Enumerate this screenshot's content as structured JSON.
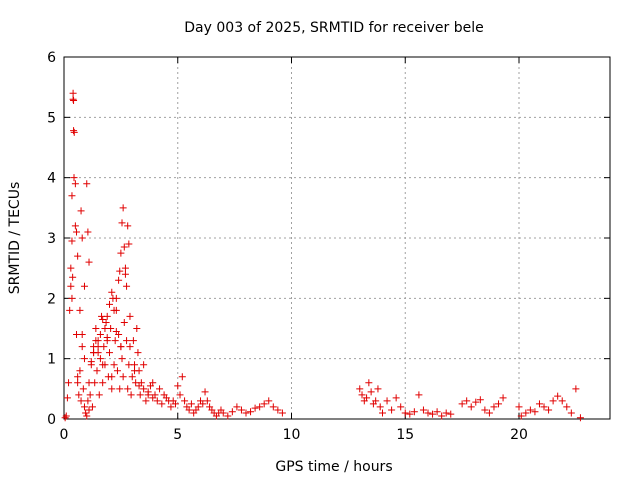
{
  "chart_data": {
    "type": "scatter",
    "title": "Day 003 of 2025, SRMTID for receiver bele",
    "xlabel": "GPS time / hours",
    "ylabel": "SRMTID / TECUs",
    "xlim": [
      0,
      24
    ],
    "ylim": [
      0,
      6
    ],
    "xticks": [
      0,
      5,
      10,
      15,
      20
    ],
    "yticks": [
      0,
      1,
      2,
      3,
      4,
      5,
      6
    ],
    "xtick_labels": [
      "0",
      "5",
      "10",
      "15",
      "20"
    ],
    "ytick_labels": [
      "0",
      "1",
      "2",
      "3",
      "4",
      "5",
      "6"
    ],
    "grid": true,
    "marker": "+",
    "color": "#e00000",
    "series": [
      {
        "name": "SRMTID",
        "x": [
          0.05,
          0.1,
          0.15,
          0.2,
          0.25,
          0.3,
          0.35,
          0.4,
          0.42,
          0.45,
          0.5,
          0.55,
          0.6,
          0.65,
          0.7,
          0.75,
          0.8,
          0.85,
          0.9,
          0.95,
          1.0,
          1.05,
          1.1,
          1.15,
          1.2,
          1.25,
          1.3,
          1.35,
          1.4,
          1.45,
          1.5,
          1.55,
          1.6,
          1.65,
          1.7,
          1.75,
          1.8,
          1.85,
          1.9,
          1.95,
          2.0,
          2.05,
          2.1,
          2.15,
          2.2,
          2.25,
          2.3,
          2.35,
          2.4,
          2.45,
          2.5,
          2.55,
          2.6,
          2.65,
          2.7,
          2.75,
          2.8,
          2.85,
          2.9,
          2.95,
          3.0,
          3.05,
          3.1,
          3.15,
          3.2,
          3.25,
          3.3,
          3.35,
          3.4,
          3.5,
          3.6,
          3.7,
          3.8,
          3.9,
          4.0,
          4.1,
          4.2,
          4.3,
          4.4,
          4.5,
          4.6,
          4.7,
          4.8,
          4.9,
          5.0,
          5.1,
          5.2,
          5.3,
          5.4,
          5.5,
          5.6,
          5.7,
          5.8,
          5.9,
          6.0,
          6.1,
          6.2,
          6.3,
          6.4,
          6.5,
          6.6,
          6.7,
          6.8,
          6.9,
          7.0,
          7.2,
          7.4,
          7.6,
          7.8,
          8.0,
          8.2,
          8.4,
          8.6,
          8.8,
          9.0,
          9.2,
          9.4,
          9.6,
          13.0,
          13.1,
          13.2,
          13.3,
          13.4,
          13.5,
          13.6,
          13.7,
          13.8,
          13.9,
          14.0,
          14.2,
          14.4,
          14.6,
          14.8,
          15.0,
          15.2,
          15.4,
          15.6,
          15.8,
          16.0,
          16.2,
          16.4,
          16.6,
          16.8,
          17.0,
          17.5,
          17.7,
          17.9,
          18.1,
          18.3,
          18.5,
          18.7,
          18.9,
          19.1,
          19.3,
          20.0,
          20.1,
          20.3,
          20.5,
          20.7,
          20.9,
          21.1,
          21.3,
          21.5,
          21.7,
          21.9,
          22.1,
          22.3,
          22.5,
          22.7,
          0.4,
          0.42,
          0.44,
          0.35,
          0.38,
          0.5,
          0.55,
          0.6,
          0.75,
          0.8,
          0.9,
          1.0,
          1.05,
          1.1,
          2.65,
          2.7,
          2.75,
          2.8,
          2.85,
          2.6,
          2.55,
          2.5,
          2.45,
          2.4,
          2.3,
          2.2,
          2.1,
          2.0,
          1.9,
          1.8,
          1.7,
          1.6,
          1.5,
          1.4,
          1.3,
          1.2,
          0.3,
          0.35,
          0.6,
          0.7,
          0.8,
          0.9,
          1.1,
          1.3,
          1.5,
          1.7,
          1.9,
          2.1,
          2.3,
          2.5,
          2.9,
          3.1,
          3.3,
          3.5,
          3.7,
          3.9
        ],
        "y": [
          0.02,
          0.05,
          0.35,
          0.6,
          1.8,
          2.2,
          2.95,
          5.4,
          5.28,
          4.75,
          3.2,
          1.4,
          0.6,
          0.4,
          0.8,
          0.3,
          1.2,
          0.5,
          0.2,
          0.1,
          0.05,
          0.3,
          0.15,
          0.4,
          0.9,
          0.2,
          1.1,
          0.6,
          1.5,
          0.8,
          1.3,
          0.4,
          1.0,
          1.7,
          0.6,
          1.2,
          0.9,
          1.6,
          1.35,
          0.7,
          1.1,
          1.5,
          0.5,
          2.0,
          0.9,
          1.3,
          1.8,
          0.8,
          1.4,
          0.5,
          1.2,
          1.0,
          0.7,
          1.6,
          2.4,
          1.3,
          0.5,
          0.9,
          1.2,
          0.4,
          0.7,
          1.3,
          0.9,
          0.6,
          1.5,
          1.1,
          0.8,
          0.4,
          0.6,
          0.5,
          0.3,
          0.4,
          0.55,
          0.35,
          0.4,
          0.3,
          0.5,
          0.25,
          0.4,
          0.35,
          0.3,
          0.2,
          0.3,
          0.25,
          0.55,
          0.4,
          0.7,
          0.3,
          0.2,
          0.15,
          0.25,
          0.1,
          0.15,
          0.2,
          0.3,
          0.25,
          0.45,
          0.3,
          0.2,
          0.15,
          0.1,
          0.05,
          0.1,
          0.15,
          0.1,
          0.05,
          0.12,
          0.2,
          0.15,
          0.1,
          0.12,
          0.18,
          0.2,
          0.25,
          0.3,
          0.2,
          0.15,
          0.1,
          0.5,
          0.4,
          0.3,
          0.35,
          0.6,
          0.45,
          0.25,
          0.3,
          0.5,
          0.2,
          0.1,
          0.3,
          0.15,
          0.35,
          0.2,
          0.1,
          0.08,
          0.12,
          0.4,
          0.15,
          0.1,
          0.08,
          0.12,
          0.05,
          0.1,
          0.08,
          0.25,
          0.3,
          0.2,
          0.28,
          0.32,
          0.15,
          0.1,
          0.2,
          0.25,
          0.35,
          0.2,
          0.05,
          0.1,
          0.15,
          0.12,
          0.25,
          0.2,
          0.15,
          0.3,
          0.38,
          0.3,
          0.2,
          0.1,
          0.5,
          0.02,
          5.3,
          4.78,
          4.0,
          3.7,
          2.35,
          3.9,
          3.1,
          2.7,
          3.45,
          3.0,
          2.2,
          3.9,
          3.1,
          2.6,
          2.85,
          2.5,
          2.2,
          3.2,
          2.9,
          3.5,
          3.25,
          2.75,
          2.45,
          2.3,
          2.0,
          1.8,
          2.1,
          1.9,
          1.7,
          1.5,
          1.65,
          1.4,
          1.2,
          1.3,
          1.1,
          0.95,
          2.5,
          2.0,
          0.7,
          1.8,
          1.4,
          1.0,
          0.6,
          1.2,
          1.1,
          0.9,
          1.3,
          0.7,
          1.45,
          1.2,
          1.7,
          0.8,
          0.55,
          0.9,
          0.45,
          0.6
        ]
      }
    ]
  }
}
